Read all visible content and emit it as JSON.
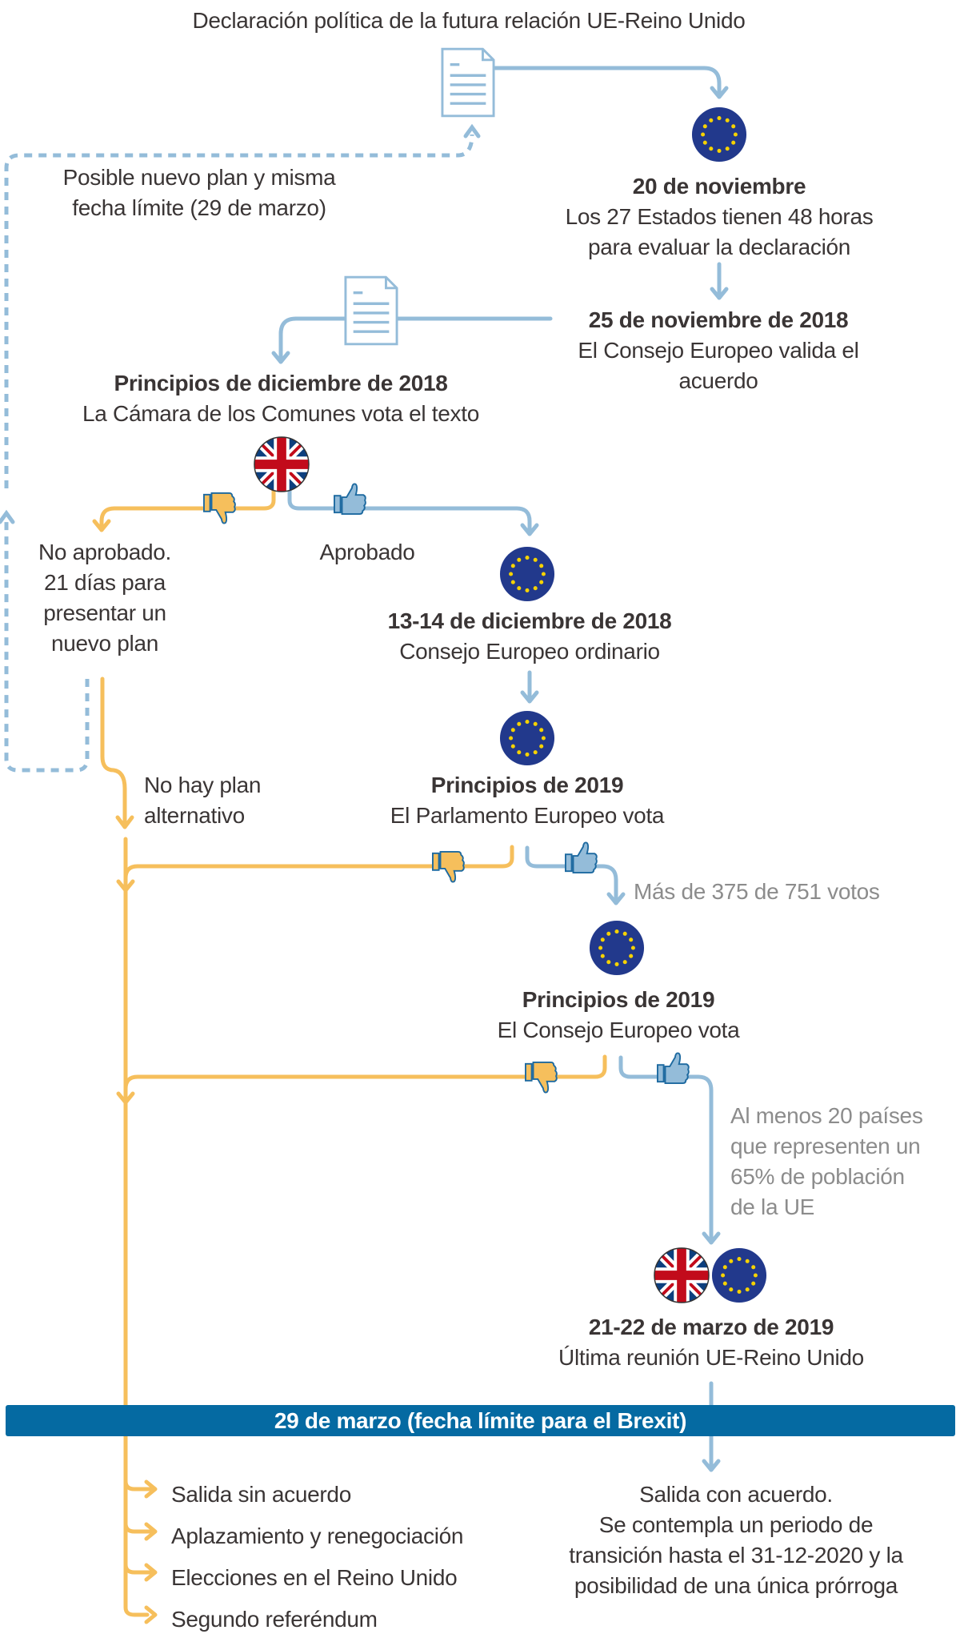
{
  "title": "Declaración política de la futura relación UE-Reino Unido",
  "loop_note": [
    "Posible nuevo plan y misma",
    "fecha límite (29 de marzo)"
  ],
  "step1": {
    "date": "20 de noviembre",
    "lines": [
      "Los 27 Estados tienen 48 horas",
      "para evaluar la declaración"
    ]
  },
  "step2": {
    "date": "25 de noviembre de 2018",
    "lines": [
      "El Consejo Europeo valida el",
      "acuerdo"
    ]
  },
  "step3": {
    "date": "Principios de diciembre de 2018",
    "lines": [
      "La Cámara de los Comunes vota el texto"
    ]
  },
  "rejected": [
    "No aprobado.",
    "21 días para",
    "presentar un",
    "nuevo plan"
  ],
  "approved": "Aprobado",
  "step4": {
    "date": "13-14 de diciembre de 2018",
    "lines": [
      "Consejo Europeo ordinario"
    ]
  },
  "no_plan": [
    "No hay plan",
    "alternativo"
  ],
  "step5": {
    "date": "Principios de 2019",
    "lines": [
      "El Parlamento Europeo vota"
    ]
  },
  "parliament_condition": "Más de 375 de 751 votos",
  "step6": {
    "date": "Principios de 2019",
    "lines": [
      "El Consejo Europeo vota"
    ]
  },
  "council_condition": [
    "Al menos 20 países",
    "que representen un",
    "65% de población",
    "de la UE"
  ],
  "step7": {
    "date": "21-22 de marzo de 2019",
    "lines": [
      "Última reunión UE-Reino Unido"
    ]
  },
  "deadline_banner": "29 de marzo (fecha límite para el Brexit)",
  "no_deal_outcomes": [
    "Salida sin acuerdo",
    "Aplazamiento y renegociación",
    "Elecciones en el Reino Unido",
    "Segundo referéndum"
  ],
  "deal_outcome": [
    "Salida con acuerdo.",
    "Se contempla un periodo de",
    "transición hasta el 31-12-2020 y la",
    "posibilidad de una única prórroga"
  ],
  "colors": {
    "approve_line": "#94bcd9",
    "reject_line": "#f6bf5c",
    "banner": "#056aa2",
    "eu_blue": "#22398c",
    "eu_star": "#f6d200",
    "uk_red": "#c20b1b",
    "uk_blue": "#0d3f7e"
  }
}
